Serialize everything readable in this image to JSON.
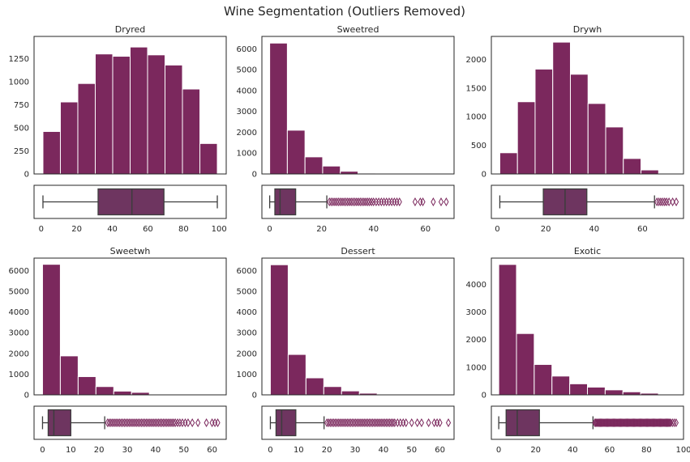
{
  "figure_title": "Wine Segmentation (Outliers Removed)",
  "colors": {
    "bar": "#7b285d",
    "bar_edge": "#ffffff",
    "box": "#6e3560",
    "whisker": "#3d3d3d",
    "flier": "#7b285d",
    "frame": "#262626"
  },
  "chart_data": [
    {
      "type": "histogram+boxplot",
      "title": "Dryred",
      "bin_edges": [
        1,
        10.8,
        20.6,
        30.4,
        40.2,
        50,
        59.8,
        69.6,
        79.4,
        89.2,
        99
      ],
      "counts": [
        460,
        780,
        980,
        1300,
        1275,
        1375,
        1290,
        1180,
        920,
        330
      ],
      "xlim": [
        -4,
        104
      ],
      "ylim": [
        0,
        1490
      ],
      "yticks": [
        0,
        250,
        500,
        750,
        1000,
        1250
      ],
      "xticks": [
        0,
        20,
        40,
        60,
        80,
        100
      ],
      "box": {
        "q1": 32,
        "median": 51,
        "q3": 69,
        "whisker_low": 1,
        "whisker_high": 99,
        "outliers": []
      }
    },
    {
      "type": "histogram+boxplot",
      "title": "Sweetred",
      "bin_edges": [
        0,
        6.8,
        13.6,
        20.4,
        27.2,
        34,
        40.8,
        47.6,
        54.4,
        61.2,
        68
      ],
      "counts": [
        6280,
        2100,
        820,
        380,
        130,
        40,
        15,
        8,
        4,
        2
      ],
      "xlim": [
        -3,
        71
      ],
      "ylim": [
        0,
        6600
      ],
      "yticks": [
        0,
        1000,
        2000,
        3000,
        4000,
        5000,
        6000
      ],
      "xticks": [
        0,
        20,
        40,
        60
      ],
      "box": {
        "q1": 2,
        "median": 4,
        "q3": 10,
        "whisker_low": 0,
        "whisker_high": 22,
        "outliers": [
          23,
          23.7,
          24.4,
          25.1,
          25.8,
          26.5,
          27.2,
          27.9,
          28.6,
          29.3,
          30,
          30.7,
          31.4,
          32.1,
          32.8,
          33.5,
          34.2,
          34.9,
          35.6,
          36.3,
          37,
          37.7,
          38.4,
          39.2,
          40,
          41,
          42,
          43,
          44,
          45,
          46,
          47,
          48,
          49,
          50,
          56,
          58,
          59,
          63,
          66,
          68
        ]
      }
    },
    {
      "type": "histogram+boxplot",
      "title": "Drywh",
      "bin_edges": [
        1,
        8.3,
        15.6,
        22.9,
        30.2,
        37.5,
        44.8,
        52.1,
        59.4,
        66.7,
        74
      ],
      "counts": [
        370,
        1260,
        1830,
        2300,
        1740,
        1230,
        820,
        270,
        70,
        8
      ],
      "xlim": [
        -2.5,
        77
      ],
      "ylim": [
        0,
        2400
      ],
      "yticks": [
        0,
        500,
        1000,
        1500,
        2000
      ],
      "xticks": [
        0,
        20,
        40,
        60
      ],
      "box": {
        "q1": 19,
        "median": 28,
        "q3": 37,
        "whisker_low": 1,
        "whisker_high": 65,
        "outliers": [
          66,
          66.8,
          67.6,
          68.4,
          69.2,
          70,
          71,
          72.5,
          74
        ]
      }
    },
    {
      "type": "histogram+boxplot",
      "title": "Sweetwh",
      "bin_edges": [
        0,
        6.3,
        12.6,
        18.9,
        25.2,
        31.5,
        37.8,
        44.1,
        50.4,
        56.7,
        63
      ],
      "counts": [
        6300,
        1880,
        880,
        400,
        180,
        120,
        10,
        5,
        3,
        2
      ],
      "xlim": [
        -3,
        65
      ],
      "ylim": [
        0,
        6600
      ],
      "yticks": [
        0,
        1000,
        2000,
        3000,
        4000,
        5000,
        6000
      ],
      "xticks": [
        0,
        10,
        20,
        30,
        40,
        50,
        60
      ],
      "box": {
        "q1": 2,
        "median": 4,
        "q3": 10,
        "whisker_low": 0,
        "whisker_high": 22,
        "outliers": [
          23,
          23.6,
          24.2,
          24.8,
          25.4,
          26,
          26.6,
          27.2,
          27.8,
          28.4,
          29,
          29.6,
          30.2,
          30.8,
          31.4,
          32,
          32.6,
          33.2,
          33.8,
          34.4,
          35,
          35.6,
          36.2,
          36.8,
          37.4,
          38,
          38.6,
          39.2,
          39.8,
          40.4,
          41,
          41.6,
          42.2,
          42.8,
          43.4,
          44,
          44.6,
          45.2,
          45.8,
          46.4,
          47,
          47.8,
          48.6,
          49.5,
          50.5,
          51.5,
          53,
          55,
          58,
          60,
          61,
          62
        ]
      }
    },
    {
      "type": "histogram+boxplot",
      "title": "Dessert",
      "bin_edges": [
        0,
        6.3,
        12.6,
        18.9,
        25.2,
        31.5,
        37.8,
        44.1,
        50.4,
        56.7,
        63
      ],
      "counts": [
        6280,
        1950,
        820,
        400,
        190,
        80,
        20,
        8,
        4,
        2
      ],
      "xlim": [
        -3,
        65
      ],
      "ylim": [
        0,
        6600
      ],
      "yticks": [
        0,
        1000,
        2000,
        3000,
        4000,
        5000,
        6000
      ],
      "xticks": [
        0,
        10,
        20,
        30,
        40,
        50,
        60
      ],
      "box": {
        "q1": 2,
        "median": 4,
        "q3": 9,
        "whisker_low": 0,
        "whisker_high": 19,
        "outliers": [
          20,
          20.6,
          21.2,
          21.8,
          22.4,
          23,
          23.6,
          24.2,
          24.8,
          25.4,
          26,
          26.6,
          27.2,
          27.8,
          28.4,
          29,
          29.6,
          30.2,
          30.8,
          31.4,
          32,
          32.6,
          33.2,
          33.8,
          34.4,
          35,
          35.6,
          36.2,
          36.8,
          37.4,
          38,
          38.6,
          39.2,
          39.8,
          40.4,
          41,
          41.6,
          42.2,
          42.8,
          43.4,
          44,
          45,
          46,
          47,
          48,
          50,
          52,
          53.5,
          56,
          58,
          59,
          60,
          63
        ]
      }
    },
    {
      "type": "histogram+boxplot",
      "title": "Exotic",
      "bin_edges": [
        0,
        9.6,
        19.2,
        28.8,
        38.4,
        48,
        57.6,
        67.2,
        76.8,
        86.4,
        96
      ],
      "counts": [
        4720,
        2220,
        1100,
        680,
        400,
        280,
        180,
        110,
        60,
        10
      ],
      "xlim": [
        -4,
        100
      ],
      "ylim": [
        0,
        4950
      ],
      "yticks": [
        0,
        1000,
        2000,
        3000,
        4000
      ],
      "xticks": [
        0,
        20,
        40,
        60,
        80,
        100
      ],
      "box": {
        "q1": 4,
        "median": 10,
        "q3": 22,
        "whisker_low": 0,
        "whisker_high": 51,
        "outliers": [
          52,
          52.5,
          53,
          53.5,
          54,
          54.5,
          55,
          55.5,
          56,
          56.5,
          57,
          57.5,
          58,
          58.5,
          59,
          59.5,
          60,
          60.5,
          61,
          61.5,
          62,
          62.5,
          63,
          63.5,
          64,
          64.5,
          65,
          65.5,
          66,
          66.5,
          67,
          67.5,
          68,
          68.5,
          69,
          69.5,
          70,
          70.5,
          71,
          71.5,
          72,
          72.5,
          73,
          73.5,
          74,
          74.5,
          75,
          75.5,
          76,
          76.5,
          77,
          77.5,
          78,
          78.5,
          79,
          79.5,
          80,
          80.5,
          81,
          81.5,
          82,
          82.5,
          83,
          83.5,
          84,
          84.5,
          85,
          85.5,
          86,
          86.5,
          87,
          87.5,
          88,
          88.5,
          89,
          89.5,
          90,
          90.5,
          91,
          91.5,
          92,
          92.5,
          93,
          94,
          95,
          96
        ]
      }
    }
  ]
}
